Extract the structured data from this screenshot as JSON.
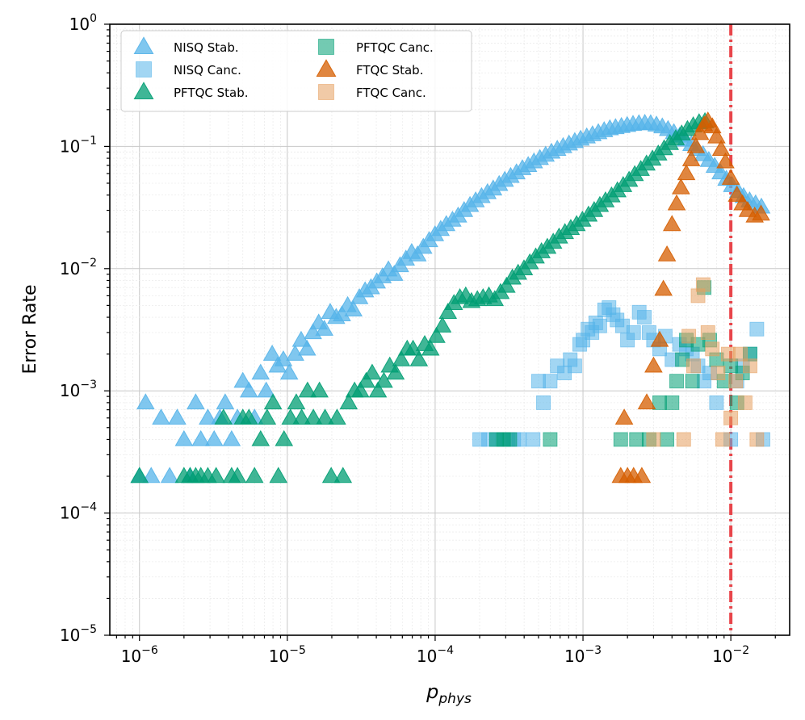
{
  "chart_data": {
    "type": "scatter",
    "xscale": "log",
    "yscale": "log",
    "xlim": [
      6.3e-07,
      0.025
    ],
    "ylim": [
      1e-05,
      1
    ],
    "xlabel_base": "p",
    "xlabel_sub": "phys",
    "ylabel": "Error Rate",
    "x_ticks": [
      {
        "exp": -6,
        "base": "10",
        "sup": "−6"
      },
      {
        "exp": -5,
        "base": "10",
        "sup": "−5"
      },
      {
        "exp": -4,
        "base": "10",
        "sup": "−4"
      },
      {
        "exp": -3,
        "base": "10",
        "sup": "−3"
      },
      {
        "exp": -2,
        "base": "10",
        "sup": "−2"
      }
    ],
    "y_ticks": [
      {
        "exp": -5,
        "base": "10",
        "sup": "−5"
      },
      {
        "exp": -4,
        "base": "10",
        "sup": "−4"
      },
      {
        "exp": -3,
        "base": "10",
        "sup": "−3"
      },
      {
        "exp": -2,
        "base": "10",
        "sup": "−2"
      },
      {
        "exp": -1,
        "base": "10",
        "sup": "−1"
      },
      {
        "exp": 0,
        "base": "10",
        "sup": "0"
      }
    ],
    "threshold": {
      "x": 0.01,
      "color": "#e8343a",
      "style": "dash-dot"
    },
    "legend": {
      "position": "top-left",
      "columns": 2
    },
    "series": [
      {
        "name": "NISQ Stab.",
        "marker": "triangle",
        "color": "#56b4e9",
        "x": [
          1e-06,
          1.1e-06,
          1.2e-06,
          1.4e-06,
          1.6e-06,
          1.8e-06,
          2e-06,
          2.2e-06,
          2.4e-06,
          2.6e-06,
          2.9e-06,
          3.2e-06,
          3.5e-06,
          3.8e-06,
          4.2e-06,
          4.6e-06,
          5e-06,
          5.5e-06,
          6e-06,
          6.6e-06,
          7.2e-06,
          7.9e-06,
          8.6e-06,
          9.4e-06,
          1.03e-05,
          1.13e-05,
          1.24e-05,
          1.36e-05,
          1.49e-05,
          1.63e-05,
          1.78e-05,
          1.95e-05,
          2.14e-05,
          2.34e-05,
          2.56e-05,
          2.8e-05,
          3.07e-05,
          3.36e-05,
          3.68e-05,
          4.03e-05,
          4.41e-05,
          4.83e-05,
          5.29e-05,
          5.79e-05,
          6.34e-05,
          6.94e-05,
          7.6e-05,
          8.32e-05,
          9.11e-05,
          9.98e-05,
          0.000109,
          0.000119,
          0.000131,
          0.000143,
          0.000157,
          0.000172,
          0.000188,
          0.000206,
          0.000226,
          0.000247,
          0.000271,
          0.000296,
          0.000324,
          0.000355,
          0.000389,
          0.000426,
          0.000466,
          0.000511,
          0.000559,
          0.000612,
          0.00067,
          0.000734,
          0.000804,
          0.00088,
          0.000964,
          0.00106,
          0.00116,
          0.00127,
          0.00139,
          0.00152,
          0.00166,
          0.00182,
          0.00199,
          0.00218,
          0.00239,
          0.00262,
          0.00287,
          0.00314,
          0.00344,
          0.00376,
          0.00412,
          0.00451,
          0.00494,
          0.00541,
          0.00592,
          0.00649,
          0.0071,
          0.00778,
          0.00852,
          0.00933,
          0.0102,
          0.0112,
          0.0122,
          0.0134,
          0.0147,
          0.0161
        ],
        "y": [
          0.0002,
          0.0008,
          0.0002,
          0.0006,
          0.0002,
          0.0006,
          0.0004,
          0.0002,
          0.0008,
          0.0004,
          0.0006,
          0.0004,
          0.0006,
          0.0008,
          0.0004,
          0.0006,
          0.0012,
          0.001,
          0.0006,
          0.0014,
          0.001,
          0.002,
          0.0016,
          0.0018,
          0.0014,
          0.002,
          0.0026,
          0.0022,
          0.003,
          0.0036,
          0.0032,
          0.0044,
          0.004,
          0.0042,
          0.005,
          0.0046,
          0.0058,
          0.0066,
          0.007,
          0.0078,
          0.0086,
          0.0098,
          0.009,
          0.0106,
          0.012,
          0.0136,
          0.013,
          0.015,
          0.017,
          0.019,
          0.021,
          0.023,
          0.025,
          0.027,
          0.03,
          0.033,
          0.036,
          0.039,
          0.042,
          0.045,
          0.049,
          0.053,
          0.057,
          0.061,
          0.066,
          0.07,
          0.075,
          0.08,
          0.085,
          0.09,
          0.095,
          0.1,
          0.105,
          0.11,
          0.115,
          0.12,
          0.125,
          0.13,
          0.135,
          0.14,
          0.143,
          0.146,
          0.149,
          0.152,
          0.154,
          0.155,
          0.154,
          0.15,
          0.145,
          0.138,
          0.13,
          0.122,
          0.113,
          0.104,
          0.095,
          0.086,
          0.077,
          0.069,
          0.061,
          0.054,
          0.048,
          0.043,
          0.039,
          0.036,
          0.034,
          0.032
        ]
      },
      {
        "name": "NISQ Canc.",
        "marker": "square",
        "color": "#56b4e9",
        "x": [
          0.0002,
          0.00023,
          0.00026,
          0.00029,
          0.00031,
          0.00034,
          0.00037,
          0.00046,
          0.0005,
          0.00054,
          0.0006,
          0.00067,
          0.00075,
          0.00082,
          0.00088,
          0.00095,
          0.001,
          0.00108,
          0.00115,
          0.00122,
          0.0013,
          0.0014,
          0.0015,
          0.0016,
          0.0017,
          0.00185,
          0.002,
          0.0022,
          0.0024,
          0.0026,
          0.0028,
          0.003,
          0.0033,
          0.0036,
          0.004,
          0.0045,
          0.005,
          0.0055,
          0.006,
          0.0066,
          0.0072,
          0.008,
          0.01,
          0.011,
          0.012,
          0.0135,
          0.015,
          0.0165
        ],
        "y": [
          0.0004,
          0.0004,
          0.0004,
          0.0004,
          0.0004,
          0.0004,
          0.0004,
          0.0004,
          0.0012,
          0.0008,
          0.0012,
          0.0016,
          0.0014,
          0.0018,
          0.0016,
          0.0024,
          0.0026,
          0.0032,
          0.003,
          0.0036,
          0.0034,
          0.0046,
          0.0048,
          0.0042,
          0.0038,
          0.0034,
          0.0026,
          0.003,
          0.0044,
          0.004,
          0.003,
          0.0026,
          0.0022,
          0.0028,
          0.0018,
          0.0024,
          0.0022,
          0.002,
          0.0016,
          0.0012,
          0.0014,
          0.0008,
          0.0004,
          0.0012,
          0.0016,
          0.002,
          0.0032,
          0.0004
        ]
      },
      {
        "name": "PFTQC Stab.",
        "marker": "triangle",
        "color": "#009e73",
        "x": [
          1e-06,
          2e-06,
          2.2e-06,
          2.4e-06,
          2.6e-06,
          2.9e-06,
          3.3e-06,
          3.7e-06,
          4.2e-06,
          4.6e-06,
          5e-06,
          5.5e-06,
          6e-06,
          6.6e-06,
          7.3e-06,
          8e-06,
          8.7e-06,
          9.5e-06,
          1.05e-05,
          1.15e-05,
          1.25e-05,
          1.37e-05,
          1.5e-05,
          1.65e-05,
          1.8e-05,
          1.98e-05,
          2.17e-05,
          2.38e-05,
          2.6e-05,
          2.85e-05,
          3.12e-05,
          3.42e-05,
          3.75e-05,
          4.1e-05,
          4.5e-05,
          4.93e-05,
          5.4e-05,
          5.9e-05,
          6.47e-05,
          7.09e-05,
          7.77e-05,
          8.5e-05,
          9.3e-05,
          0.000102,
          0.000112,
          0.000122,
          0.000134,
          0.000147,
          0.000161,
          0.000176,
          0.000193,
          0.000211,
          0.000231,
          0.000253,
          0.000277,
          0.000304,
          0.000333,
          0.000364,
          0.000399,
          0.000437,
          0.000479,
          0.000524,
          0.000574,
          0.000629,
          0.000689,
          0.000755,
          0.000827,
          0.000905,
          0.000991,
          0.00109,
          0.00119,
          0.0013,
          0.00142,
          0.00156,
          0.00171,
          0.00187,
          0.00205,
          0.00224,
          0.00246,
          0.00269,
          0.00295,
          0.00323,
          0.00354,
          0.00387,
          0.00424,
          0.00465,
          0.00509,
          0.00557,
          0.0061,
          0.00668
        ],
        "y": [
          0.0002,
          0.0002,
          0.0002,
          0.0002,
          0.0002,
          0.0002,
          0.0002,
          0.0006,
          0.0002,
          0.0002,
          0.0006,
          0.0006,
          0.0002,
          0.0004,
          0.0006,
          0.0008,
          0.0002,
          0.0004,
          0.0006,
          0.0008,
          0.0006,
          0.001,
          0.0006,
          0.001,
          0.0006,
          0.0002,
          0.0006,
          0.0002,
          0.0008,
          0.001,
          0.001,
          0.0012,
          0.0014,
          0.001,
          0.0012,
          0.0016,
          0.0014,
          0.0018,
          0.0022,
          0.0022,
          0.0018,
          0.0024,
          0.0022,
          0.0028,
          0.0034,
          0.0044,
          0.0052,
          0.0058,
          0.006,
          0.0054,
          0.0056,
          0.0058,
          0.006,
          0.0056,
          0.0064,
          0.0072,
          0.0084,
          0.0092,
          0.01,
          0.0112,
          0.0125,
          0.0138,
          0.015,
          0.0165,
          0.0182,
          0.0198,
          0.0214,
          0.023,
          0.025,
          0.0275,
          0.03,
          0.033,
          0.036,
          0.0395,
          0.0435,
          0.048,
          0.053,
          0.059,
          0.065,
          0.072,
          0.079,
          0.087,
          0.096,
          0.106,
          0.116,
          0.127,
          0.138,
          0.148,
          0.157,
          0.16
        ]
      },
      {
        "name": "PFTQC Canc.",
        "marker": "square",
        "color": "#009e73",
        "x": [
          0.00026,
          0.00029,
          0.00032,
          0.0006,
          0.0018,
          0.0023,
          0.0028,
          0.0033,
          0.0037,
          0.004,
          0.0043,
          0.0047,
          0.005,
          0.0055,
          0.006,
          0.0066,
          0.0072,
          0.008,
          0.009,
          0.01,
          0.011,
          0.012,
          0.0135
        ],
        "y": [
          0.0004,
          0.0004,
          0.0004,
          0.0004,
          0.0004,
          0.0004,
          0.0004,
          0.0008,
          0.0004,
          0.0008,
          0.0012,
          0.0018,
          0.0026,
          0.0012,
          0.0024,
          0.007,
          0.0026,
          0.0018,
          0.0012,
          0.0016,
          0.0008,
          0.0014,
          0.002
        ]
      },
      {
        "name": "FTQC Stab.",
        "marker": "triangle",
        "color": "#d55e00",
        "x": [
          0.0018,
          0.0019,
          0.002,
          0.0022,
          0.0025,
          0.0027,
          0.003,
          0.0033,
          0.0035,
          0.0037,
          0.004,
          0.0043,
          0.0046,
          0.005,
          0.0054,
          0.0058,
          0.0062,
          0.0066,
          0.007,
          0.0075,
          0.008,
          0.0086,
          0.0092,
          0.01,
          0.011,
          0.012,
          0.013,
          0.0145,
          0.016
        ],
        "y": [
          0.0002,
          0.0006,
          0.0002,
          0.0002,
          0.0002,
          0.0008,
          0.0016,
          0.0026,
          0.0068,
          0.013,
          0.023,
          0.034,
          0.046,
          0.06,
          0.078,
          0.1,
          0.128,
          0.15,
          0.162,
          0.145,
          0.12,
          0.095,
          0.075,
          0.055,
          0.04,
          0.034,
          0.03,
          0.027,
          0.028
        ]
      },
      {
        "name": "FTQC Canc.",
        "marker": "square",
        "color": "#e69f5f",
        "x": [
          0.003,
          0.0048,
          0.0052,
          0.0056,
          0.006,
          0.0065,
          0.007,
          0.0075,
          0.0082,
          0.0088,
          0.0096,
          0.01,
          0.0108,
          0.0116,
          0.0125,
          0.0135,
          0.015
        ],
        "y": [
          0.0004,
          0.0004,
          0.0028,
          0.0016,
          0.006,
          0.0074,
          0.003,
          0.0022,
          0.0014,
          0.0004,
          0.002,
          0.0006,
          0.0012,
          0.002,
          0.0008,
          0.0016,
          0.0004
        ]
      }
    ]
  }
}
